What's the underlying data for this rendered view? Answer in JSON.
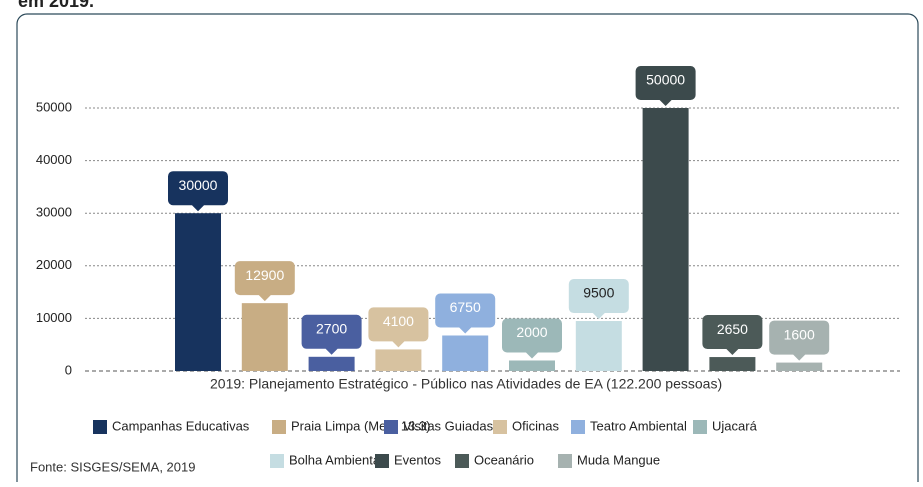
{
  "heading": "em 2019.",
  "source": "Fonte: SISGES/SEMA, 2019",
  "chart_data": {
    "type": "bar",
    "x_label": "2019: Planejamento Estratégico - Público nas Atividades de EA (122.200 pessoas)",
    "categories": [
      "Campanhas Educativas",
      "Praia Limpa (Meta 13.3)",
      "Visitas Guiadas",
      "Oficinas",
      "Teatro Ambiental",
      "Ujacará",
      "Bolha Ambiental",
      "Eventos",
      "Oceanário",
      "Muda Mangue"
    ],
    "values": [
      30000,
      12900,
      2700,
      4100,
      6750,
      2000,
      9500,
      50000,
      2650,
      1600
    ],
    "colors": [
      "#17335e",
      "#c8ad84",
      "#4a5fa0",
      "#d7c2a0",
      "#8fb0de",
      "#9cb8b8",
      "#c5dde2",
      "#3c4a4c",
      "#4c5a58",
      "#a6b2b0"
    ],
    "ylim": [
      0,
      50000
    ],
    "yticks": [
      0,
      10000,
      20000,
      30000,
      40000,
      50000
    ],
    "grid": true,
    "legend": "bottom"
  }
}
